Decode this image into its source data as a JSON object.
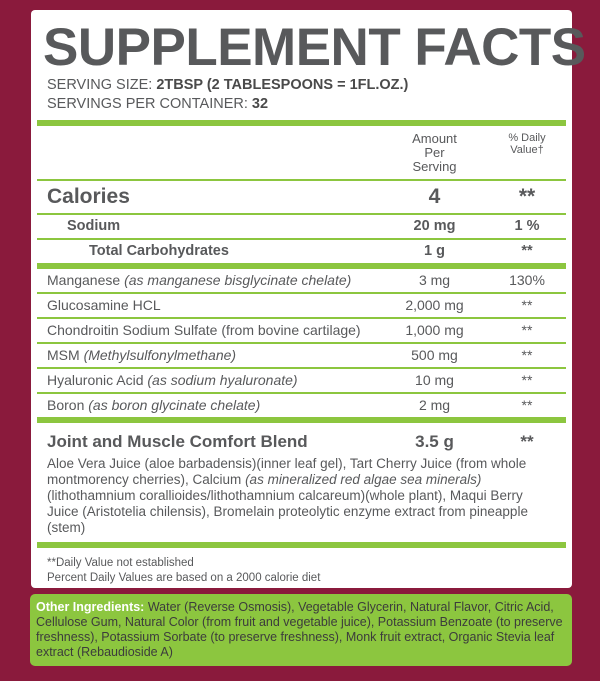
{
  "title": "SUPPLEMENT FACTS",
  "serving_size": {
    "label": "SERVING SIZE:",
    "value": "2TBSP (2 TABLESPOONS = 1FL.OZ.)"
  },
  "servings_per_container": {
    "label": "SERVINGS PER CONTAINER:",
    "value": "32"
  },
  "header": {
    "amount": "Amount Per Serving",
    "daily_value": "% Daily Value†"
  },
  "calories": {
    "name": "Calories",
    "amount": "4",
    "daily_value": "**"
  },
  "nutrients": [
    {
      "name": "Sodium",
      "amount": "20 mg",
      "daily_value": "1 %"
    },
    {
      "name": "Total Carbohydrates",
      "amount": "1 g",
      "daily_value": "**"
    }
  ],
  "ingredients": [
    {
      "name": "Manganese",
      "note": "(as manganese bisglycinate chelate)",
      "amount": "3 mg",
      "daily_value": "130%"
    },
    {
      "name": "Glucosamine HCL",
      "amount": "2,000 mg",
      "daily_value": "**"
    },
    {
      "name": "Chondroitin Sodium Sulfate (from bovine cartilage)",
      "amount": "1,000 mg",
      "daily_value": "**"
    },
    {
      "name": "MSM",
      "note": "(Methylsulfonylmethane)",
      "amount": "500 mg",
      "daily_value": "**"
    },
    {
      "name": "Hyaluronic Acid",
      "note": "(as sodium hyaluronate)",
      "amount": "10 mg",
      "daily_value": "**"
    },
    {
      "name": "Boron",
      "note": "(as boron glycinate chelate)",
      "amount": "2 mg",
      "daily_value": "**"
    }
  ],
  "blend": {
    "name": "Joint and Muscle Comfort Blend",
    "amount": "3.5 g",
    "daily_value": "**",
    "description": [
      {
        "text": "Aloe Vera Juice (aloe barbadensis)(inner leaf gel), Tart Cherry Juice (from whole montmorency cherries), Calcium "
      },
      {
        "text": "(as mineralized red algae sea minerals)",
        "italic": true
      },
      {
        "text": "(lithothamnium corallioides/lithothamnium calcareum)(whole plant), Maqui Berry Juice (Aristotelia chilensis), Bromelain proteolytic enzyme extract from pineapple (stem)"
      }
    ]
  },
  "footnotes": [
    "**Daily Value not established",
    "Percent Daily Values are based on a 2000 calorie diet"
  ],
  "other_ingredients": {
    "label": "Other Ingredients:",
    "text": "Water (Reverse Osmosis), Vegetable Glycerin, Natural Flavor, Citric Acid, Cellulose Gum, Natural Color (from fruit and vegetable juice), Potassium Benzoate (to preserve freshness), Potassium Sorbate (to preserve freshness), Monk fruit extract, Organic Stevia leaf extract (Rebaudioside A)"
  }
}
